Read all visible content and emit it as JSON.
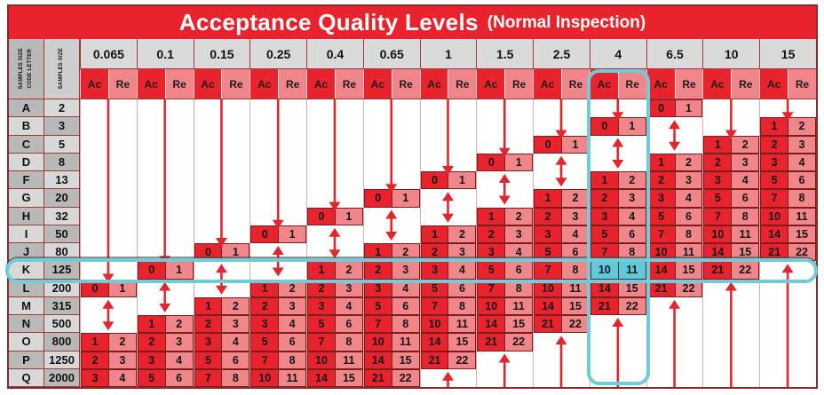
{
  "chart_data": {
    "type": "table",
    "title": "Acceptance Quality Levels",
    "subtitle": "(Normal Inspection)",
    "corner_header_1": [
      "SAMPLES SIZE",
      "CODE LETTER"
    ],
    "corner_header_2": "SAMPLES SIZE",
    "ac_label": "Ac",
    "re_label": "Re",
    "aql_levels": [
      "0.065",
      "0.1",
      "0.15",
      "0.25",
      "0.4",
      "0.65",
      "1",
      "1.5",
      "2.5",
      "4",
      "6.5",
      "10",
      "15"
    ],
    "highlight": {
      "row_letter": "K",
      "aql_level": "4",
      "intersection_values": [
        10,
        11
      ]
    },
    "colors": {
      "red_dark": "#e8232d",
      "red_light": "#f0868a",
      "cyan": "#5ec9da",
      "arrow_red": "#e3262e",
      "gray_dark": "#b9b9b9",
      "gray_light": "#d8d8d8"
    },
    "rows": [
      {
        "letter": "A",
        "size": "2",
        "cells": [
          null,
          null,
          null,
          null,
          null,
          null,
          null,
          null,
          null,
          null,
          [
            0,
            1
          ],
          null,
          null
        ]
      },
      {
        "letter": "B",
        "size": "3",
        "cells": [
          null,
          null,
          null,
          null,
          null,
          null,
          null,
          null,
          null,
          [
            0,
            1
          ],
          null,
          null,
          [
            1,
            2
          ]
        ]
      },
      {
        "letter": "C",
        "size": "5",
        "cells": [
          null,
          null,
          null,
          null,
          null,
          null,
          null,
          null,
          [
            0,
            1
          ],
          null,
          null,
          [
            1,
            2
          ],
          [
            2,
            3
          ]
        ]
      },
      {
        "letter": "D",
        "size": "8",
        "cells": [
          null,
          null,
          null,
          null,
          null,
          null,
          null,
          [
            0,
            1
          ],
          null,
          null,
          [
            1,
            2
          ],
          [
            2,
            3
          ],
          [
            3,
            4
          ]
        ]
      },
      {
        "letter": "F",
        "size": "13",
        "cells": [
          null,
          null,
          null,
          null,
          null,
          null,
          [
            0,
            1
          ],
          null,
          null,
          [
            1,
            2
          ],
          [
            2,
            3
          ],
          [
            3,
            4
          ],
          [
            5,
            6
          ]
        ]
      },
      {
        "letter": "G",
        "size": "20",
        "cells": [
          null,
          null,
          null,
          null,
          null,
          [
            0,
            1
          ],
          null,
          null,
          [
            1,
            2
          ],
          [
            2,
            3
          ],
          [
            3,
            4
          ],
          [
            5,
            6
          ],
          [
            7,
            8
          ]
        ]
      },
      {
        "letter": "H",
        "size": "32",
        "cells": [
          null,
          null,
          null,
          null,
          [
            0,
            1
          ],
          null,
          null,
          [
            1,
            2
          ],
          [
            2,
            3
          ],
          [
            3,
            4
          ],
          [
            5,
            6
          ],
          [
            7,
            8
          ],
          [
            10,
            11
          ]
        ]
      },
      {
        "letter": "I",
        "size": "50",
        "cells": [
          null,
          null,
          null,
          [
            0,
            1
          ],
          null,
          null,
          [
            1,
            2
          ],
          [
            2,
            3
          ],
          [
            3,
            4
          ],
          [
            5,
            6
          ],
          [
            7,
            8
          ],
          [
            10,
            11
          ],
          [
            14,
            15
          ]
        ]
      },
      {
        "letter": "J",
        "size": "80",
        "cells": [
          null,
          null,
          [
            0,
            1
          ],
          null,
          null,
          [
            1,
            2
          ],
          [
            2,
            3
          ],
          [
            3,
            4
          ],
          [
            5,
            6
          ],
          [
            7,
            8
          ],
          [
            10,
            11
          ],
          [
            14,
            15
          ],
          [
            21,
            22
          ]
        ]
      },
      {
        "letter": "K",
        "size": "125",
        "cells": [
          null,
          [
            0,
            1
          ],
          null,
          null,
          [
            1,
            2
          ],
          [
            2,
            3
          ],
          [
            3,
            4
          ],
          [
            5,
            6
          ],
          [
            7,
            8
          ],
          [
            10,
            11
          ],
          [
            14,
            15
          ],
          [
            21,
            22
          ],
          null
        ]
      },
      {
        "letter": "L",
        "size": "200",
        "cells": [
          [
            0,
            1
          ],
          null,
          null,
          [
            1,
            2
          ],
          [
            2,
            3
          ],
          [
            3,
            4
          ],
          [
            5,
            6
          ],
          [
            7,
            8
          ],
          [
            10,
            11
          ],
          [
            14,
            15
          ],
          [
            21,
            22
          ],
          null,
          null
        ]
      },
      {
        "letter": "M",
        "size": "315",
        "cells": [
          null,
          null,
          [
            1,
            2
          ],
          [
            2,
            3
          ],
          [
            3,
            4
          ],
          [
            5,
            6
          ],
          [
            7,
            8
          ],
          [
            10,
            11
          ],
          [
            14,
            15
          ],
          [
            21,
            22
          ],
          null,
          null,
          null
        ]
      },
      {
        "letter": "N",
        "size": "500",
        "cells": [
          null,
          [
            1,
            2
          ],
          [
            2,
            3
          ],
          [
            3,
            4
          ],
          [
            5,
            6
          ],
          [
            7,
            8
          ],
          [
            10,
            11
          ],
          [
            14,
            15
          ],
          [
            21,
            22
          ],
          null,
          null,
          null,
          null
        ]
      },
      {
        "letter": "O",
        "size": "800",
        "cells": [
          [
            1,
            2
          ],
          [
            2,
            3
          ],
          [
            3,
            4
          ],
          [
            5,
            6
          ],
          [
            7,
            8
          ],
          [
            10,
            11
          ],
          [
            14,
            15
          ],
          [
            21,
            22
          ],
          null,
          null,
          null,
          null,
          null
        ]
      },
      {
        "letter": "P",
        "size": "1250",
        "cells": [
          [
            2,
            3
          ],
          [
            3,
            4
          ],
          [
            5,
            6
          ],
          [
            7,
            8
          ],
          [
            10,
            11
          ],
          [
            14,
            15
          ],
          [
            21,
            22
          ],
          null,
          null,
          null,
          null,
          null,
          null
        ]
      },
      {
        "letter": "Q",
        "size": "2000",
        "cells": [
          [
            3,
            4
          ],
          [
            5,
            6
          ],
          [
            7,
            8
          ],
          [
            10,
            11
          ],
          [
            14,
            15
          ],
          [
            21,
            22
          ],
          null,
          null,
          null,
          null,
          null,
          null,
          null
        ]
      }
    ]
  }
}
